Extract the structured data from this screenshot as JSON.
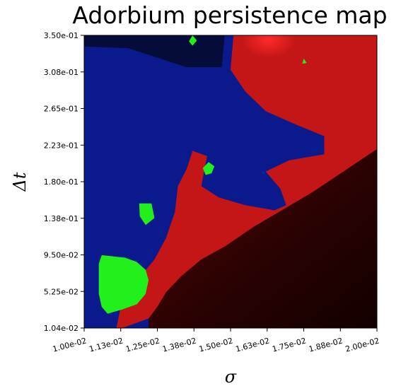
{
  "chart_data": {
    "type": "heatmap",
    "title": "Adorbium persistence map",
    "xlabel": "σ",
    "ylabel": "Δt",
    "xlim": [
      0.01,
      0.02
    ],
    "ylim": [
      0.0104,
      0.35
    ],
    "x_ticks": [
      "1.00e-02",
      "1.13e-02",
      "1.25e-02",
      "1.38e-02",
      "1.50e-02",
      "1.63e-02",
      "1.75e-02",
      "1.88e-02",
      "2.00e-02"
    ],
    "y_ticks": [
      "1.04e-02",
      "5.25e-02",
      "9.50e-02",
      "1.38e-01",
      "1.80e-01",
      "2.23e-01",
      "2.65e-01",
      "3.08e-01",
      "3.50e-01"
    ],
    "colors": {
      "blue_region": "#0a1a8c",
      "dark_navy_region": "#050c3a",
      "red_region": "#c41616",
      "bright_red": "#ff2020",
      "green_region": "#22f01a",
      "dark_red_region": "#2a0202",
      "black_region": "#150000"
    },
    "regions": [
      {
        "name": "dark_navy",
        "color": "#050c3a",
        "polygon": [
          [
            0.01,
            0.35
          ],
          [
            0.0148,
            0.35
          ],
          [
            0.0147,
            0.313
          ],
          [
            0.0135,
            0.313
          ],
          [
            0.0115,
            0.335
          ],
          [
            0.01,
            0.337
          ]
        ]
      },
      {
        "name": "blue",
        "color": "#0a1a8c",
        "polygon": [
          [
            0.01,
            0.337
          ],
          [
            0.0115,
            0.335
          ],
          [
            0.0135,
            0.313
          ],
          [
            0.0147,
            0.313
          ],
          [
            0.0148,
            0.35
          ],
          [
            0.0151,
            0.35
          ],
          [
            0.015,
            0.31
          ],
          [
            0.0155,
            0.285
          ],
          [
            0.0162,
            0.262
          ],
          [
            0.0172,
            0.247
          ],
          [
            0.0182,
            0.233
          ],
          [
            0.0182,
            0.212
          ],
          [
            0.017,
            0.205
          ],
          [
            0.0162,
            0.192
          ],
          [
            0.0167,
            0.172
          ],
          [
            0.0169,
            0.153
          ],
          [
            0.0165,
            0.147
          ],
          [
            0.0155,
            0.153
          ],
          [
            0.0146,
            0.162
          ],
          [
            0.014,
            0.175
          ],
          [
            0.0142,
            0.21
          ],
          [
            0.0137,
            0.216
          ],
          [
            0.0136,
            0.205
          ],
          [
            0.0135,
            0.195
          ],
          [
            0.0132,
            0.175
          ],
          [
            0.0131,
            0.145
          ],
          [
            0.0128,
            0.115
          ],
          [
            0.0124,
            0.09
          ],
          [
            0.0118,
            0.065
          ],
          [
            0.0113,
            0.043
          ],
          [
            0.0111,
            0.0104
          ],
          [
            0.01,
            0.0104
          ]
        ]
      },
      {
        "name": "red",
        "color": "#c41616",
        "polygon": [
          [
            0.0151,
            0.35
          ],
          [
            0.02,
            0.35
          ],
          [
            0.02,
            0.218
          ],
          [
            0.0178,
            0.168
          ],
          [
            0.0158,
            0.128
          ],
          [
            0.0148,
            0.105
          ],
          [
            0.014,
            0.09
          ],
          [
            0.0133,
            0.07
          ],
          [
            0.0128,
            0.052
          ],
          [
            0.0125,
            0.035
          ],
          [
            0.0122,
            0.0215
          ],
          [
            0.0113,
            0.0104
          ],
          [
            0.0111,
            0.0104
          ],
          [
            0.0113,
            0.043
          ],
          [
            0.0118,
            0.065
          ],
          [
            0.0124,
            0.09
          ],
          [
            0.0128,
            0.115
          ],
          [
            0.0131,
            0.145
          ],
          [
            0.0132,
            0.175
          ],
          [
            0.0135,
            0.195
          ],
          [
            0.0136,
            0.205
          ],
          [
            0.0137,
            0.216
          ],
          [
            0.0142,
            0.21
          ],
          [
            0.014,
            0.175
          ],
          [
            0.0146,
            0.162
          ],
          [
            0.0155,
            0.153
          ],
          [
            0.0165,
            0.147
          ],
          [
            0.0169,
            0.153
          ],
          [
            0.0167,
            0.172
          ],
          [
            0.0162,
            0.192
          ],
          [
            0.017,
            0.205
          ],
          [
            0.0182,
            0.212
          ],
          [
            0.0182,
            0.233
          ],
          [
            0.0172,
            0.247
          ],
          [
            0.0162,
            0.262
          ],
          [
            0.0155,
            0.285
          ],
          [
            0.015,
            0.31
          ]
        ]
      },
      {
        "name": "dark_red",
        "color": "#2a0202",
        "polygon": [
          [
            0.0122,
            0.0104
          ],
          [
            0.02,
            0.0104
          ],
          [
            0.02,
            0.218
          ],
          [
            0.0178,
            0.168
          ],
          [
            0.0158,
            0.128
          ],
          [
            0.0148,
            0.105
          ],
          [
            0.014,
            0.09
          ],
          [
            0.0133,
            0.07
          ],
          [
            0.0128,
            0.052
          ],
          [
            0.0125,
            0.035
          ],
          [
            0.0122,
            0.0215
          ]
        ]
      },
      {
        "name": "green_patch",
        "color": "#22f01a",
        "polygon": [
          [
            0.0106,
            0.095
          ],
          [
            0.0114,
            0.092
          ],
          [
            0.0118,
            0.087
          ],
          [
            0.0121,
            0.078
          ],
          [
            0.0122,
            0.066
          ],
          [
            0.0121,
            0.05
          ],
          [
            0.0118,
            0.038
          ],
          [
            0.0113,
            0.032
          ],
          [
            0.0108,
            0.027
          ],
          [
            0.0106,
            0.035
          ],
          [
            0.0105,
            0.05
          ],
          [
            0.0105,
            0.07
          ],
          [
            0.0105,
            0.085
          ]
        ]
      },
      {
        "name": "green_patch",
        "color": "#22f01a",
        "polygon": [
          [
            0.01188,
            0.155
          ],
          [
            0.0123,
            0.155
          ],
          [
            0.0124,
            0.138
          ],
          [
            0.0121,
            0.13
          ],
          [
            0.0119,
            0.14
          ]
        ]
      },
      {
        "name": "green_patch",
        "color": "#22f01a",
        "polygon": [
          [
            0.01405,
            0.196
          ],
          [
            0.01425,
            0.203
          ],
          [
            0.01445,
            0.198
          ],
          [
            0.01435,
            0.19
          ],
          [
            0.01415,
            0.188
          ]
        ]
      },
      {
        "name": "green_patch",
        "color": "#22f01a",
        "polygon": [
          [
            0.01358,
            0.343
          ],
          [
            0.0137,
            0.35
          ],
          [
            0.01385,
            0.344
          ],
          [
            0.0137,
            0.338
          ]
        ]
      },
      {
        "name": "green_patch",
        "color": "#22f01a",
        "polygon": [
          [
            0.01745,
            0.317
          ],
          [
            0.0175,
            0.323
          ],
          [
            0.0176,
            0.318
          ]
        ]
      }
    ],
    "highlight": {
      "name": "bright_red_glow",
      "color": "#ff2020",
      "x": 0.0163,
      "y": 0.345
    }
  }
}
